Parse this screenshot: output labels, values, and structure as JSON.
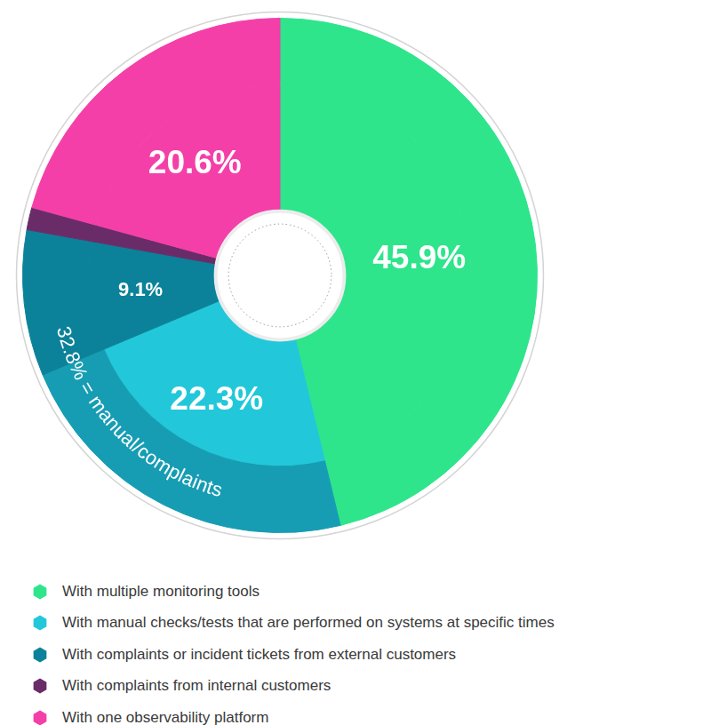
{
  "chart_data": {
    "type": "doughnut",
    "categories": [
      "With multiple monitoring tools",
      "With manual checks/tests that are performed on systems at specific times",
      "With complaints or incident tickets from external customers",
      "With complaints from internal customers",
      "With one observability platform"
    ],
    "values": [
      45.9,
      22.3,
      9.1,
      1.4,
      20.6
    ],
    "value_labels": [
      "45.9%",
      "22.3%",
      "9.1%",
      null,
      "20.6%"
    ],
    "colors": [
      "#2ee58b",
      "#22c8d9",
      "#0b8299",
      "#6a2c68",
      "#f43fa9"
    ],
    "data_labels": true,
    "legend": "bottom",
    "annotations": [
      "32.8% = manual/complaints"
    ]
  }
}
